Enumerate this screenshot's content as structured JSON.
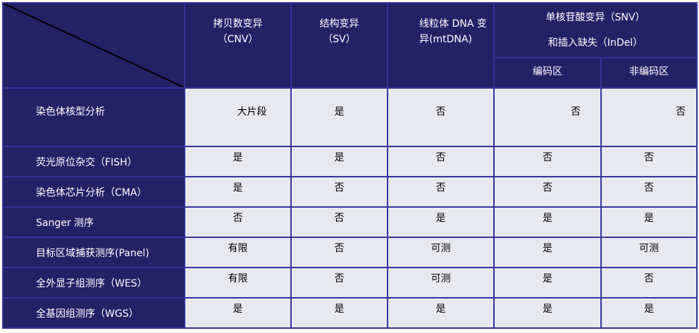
{
  "header": {
    "cnv": [
      "拷贝数变异",
      "（CNV）"
    ],
    "sv": [
      "结构变异",
      "（SV）"
    ],
    "mtdna": [
      "线粒体 DNA 变",
      "异(mtDNA)"
    ],
    "snv": [
      "单核苷酸变异（SNV）",
      "和插入缺失（InDel）"
    ],
    "coding": "编码区",
    "noncoding": "非编码区"
  },
  "rows": [
    {
      "method": "染色体核型分析",
      "values": [
        "大片段",
        "是",
        "否",
        "否",
        "否"
      ]
    },
    {
      "method": "荧光原位杂交（FISH）",
      "values": [
        "是",
        "是",
        "否",
        "否",
        "否"
      ]
    },
    {
      "method": "染色体芯片分析（CMA）",
      "values": [
        "是",
        "否",
        "否",
        "否",
        "否"
      ]
    },
    {
      "method": "Sanger 测序",
      "values": [
        "否",
        "否",
        "是",
        "是",
        "是"
      ]
    },
    {
      "method": "目标区域捕获测序(Panel)",
      "values": [
        "有限",
        "否",
        "可测",
        "是",
        "可测"
      ]
    },
    {
      "method": "全外显子组测序（WES）",
      "values": [
        "有限",
        "否",
        "可测",
        "是",
        "否"
      ]
    },
    {
      "method": "全基因组测序（WGS）",
      "values": [
        "是",
        "是",
        "是",
        "是",
        "是"
      ]
    }
  ],
  "colors": {
    "header_bg": "#222266",
    "border": "#33339a",
    "cell_bg": "#e8e9ee"
  }
}
